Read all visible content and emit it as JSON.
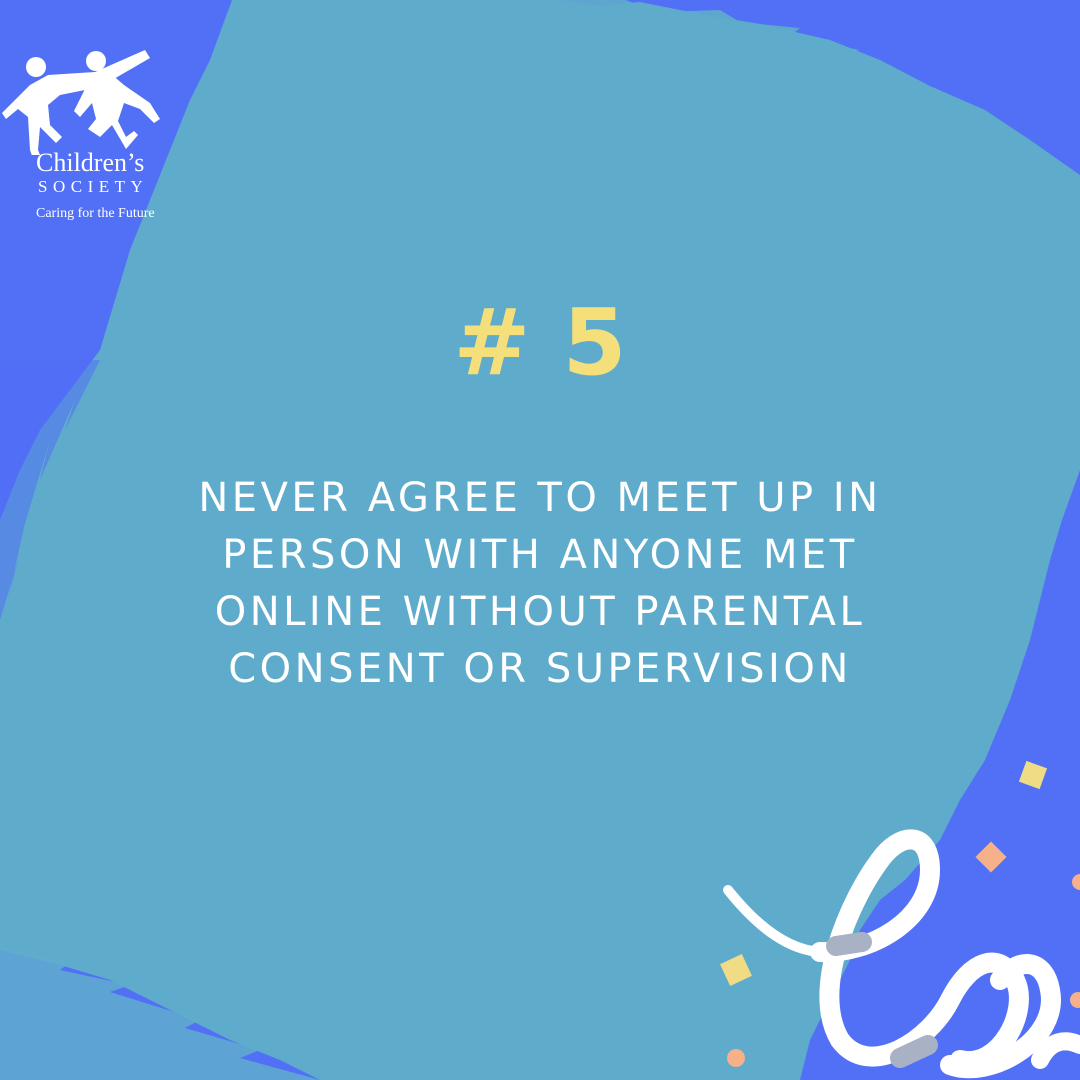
{
  "colors": {
    "background": "#5170f5",
    "panel": "#5fabcc",
    "number": "#f4df7b",
    "text": "#ffffff",
    "confetti_yellow": "#f1dc86",
    "confetti_peach": "#f6b08a",
    "ribbon": "#ffffff",
    "ribbon_shade": "#a9b2c4"
  },
  "logo": {
    "name": "Children’s",
    "society": "SOCIETY",
    "tagline": "Caring for the Future",
    "mark": "two-children-holding-hands-icon"
  },
  "tip": {
    "number": "# 5",
    "lines": [
      "NEVER AGREE TO MEET UP IN",
      "PERSON WITH ANYONE MET",
      "ONLINE WITHOUT PARENTAL",
      "CONSENT OR SUPERVISION"
    ]
  },
  "decorations": {
    "ribbon": "curly-ribbon-streamer",
    "confetti": "square-and-dot-confetti"
  }
}
